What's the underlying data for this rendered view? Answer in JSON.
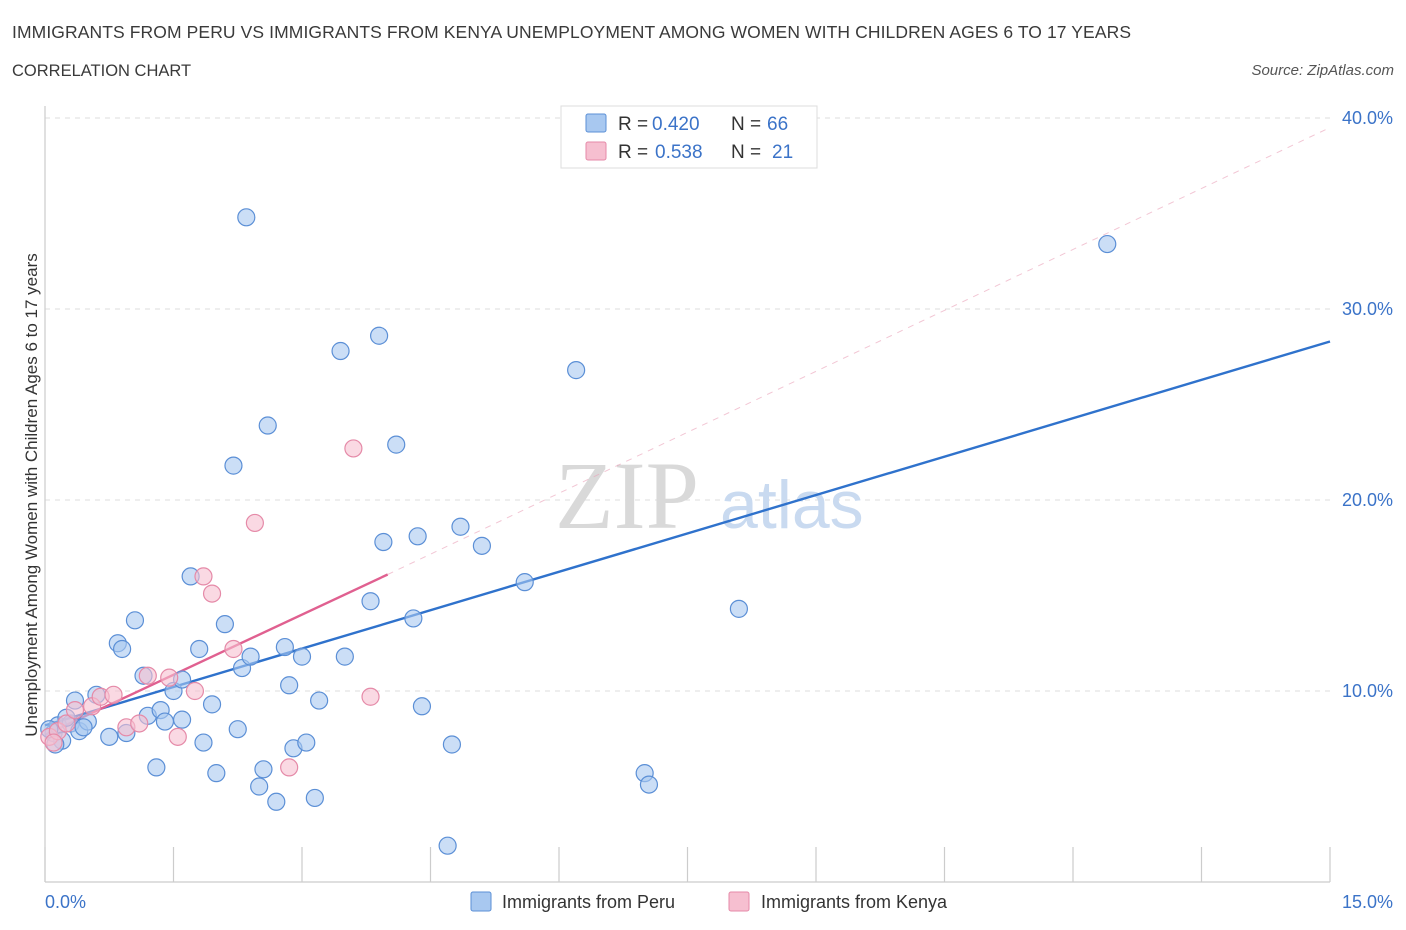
{
  "header": {
    "title": "IMMIGRANTS FROM PERU VS IMMIGRANTS FROM KENYA UNEMPLOYMENT AMONG WOMEN WITH CHILDREN AGES 6 TO 17 YEARS",
    "subtitle": "CORRELATION CHART",
    "source": "Source: ZipAtlas.com"
  },
  "watermark": {
    "zip": "ZIP",
    "atlas": "atlas"
  },
  "colors": {
    "peru_fill": "#a8c8f0",
    "peru_stroke": "#5b8fd6",
    "peru_line": "#2f72cc",
    "kenya_fill": "#f6bfd0",
    "kenya_stroke": "#e58aa8",
    "kenya_line": "#e06090",
    "axis_label": "#3b73c8",
    "grid": "#dddddd"
  },
  "legend": {
    "rows": [
      {
        "r_label": "R = ",
        "r_value": "0.420",
        "n_label": "N = ",
        "n_value": "66",
        "series": "peru"
      },
      {
        "r_label": "R = ",
        "r_value": "0.538",
        "n_label": "N = ",
        "n_value": "21",
        "series": "kenya"
      }
    ]
  },
  "bottom_legend": [
    "Immigrants from Peru",
    "Immigrants from Kenya"
  ],
  "chart_data": {
    "type": "scatter",
    "title": "IMMIGRANTS FROM PERU VS IMMIGRANTS FROM KENYA UNEMPLOYMENT AMONG WOMEN WITH CHILDREN AGES 6 TO 17 YEARS",
    "xlabel": "",
    "ylabel": "Unemployment Among Women with Children Ages 6 to 17 years",
    "xlim": [
      0,
      15
    ],
    "ylim": [
      0,
      40
    ],
    "x_tick_labels": [
      "0.0%",
      "15.0%"
    ],
    "y_ticks": [
      10,
      20,
      30,
      40
    ],
    "y_tick_labels": [
      "10.0%",
      "20.0%",
      "30.0%",
      "40.0%"
    ],
    "grid": true,
    "legend_position": "top-center",
    "series": [
      {
        "name": "Immigrants from Peru",
        "points": [
          [
            0.1,
            7.8
          ],
          [
            0.15,
            8.2
          ],
          [
            0.2,
            7.4
          ],
          [
            0.3,
            8.3
          ],
          [
            0.35,
            9.5
          ],
          [
            0.4,
            7.9
          ],
          [
            0.5,
            8.4
          ],
          [
            0.6,
            9.8
          ],
          [
            0.75,
            7.6
          ],
          [
            0.85,
            12.5
          ],
          [
            0.9,
            12.2
          ],
          [
            0.95,
            7.8
          ],
          [
            1.05,
            13.7
          ],
          [
            1.15,
            10.8
          ],
          [
            1.2,
            8.7
          ],
          [
            1.3,
            6.0
          ],
          [
            1.35,
            9.0
          ],
          [
            1.4,
            8.4
          ],
          [
            1.5,
            10.0
          ],
          [
            1.6,
            8.5
          ],
          [
            1.6,
            10.6
          ],
          [
            1.7,
            16.0
          ],
          [
            1.8,
            12.2
          ],
          [
            1.85,
            7.3
          ],
          [
            1.95,
            9.3
          ],
          [
            2.0,
            5.7
          ],
          [
            2.1,
            13.5
          ],
          [
            2.2,
            21.8
          ],
          [
            2.3,
            11.2
          ],
          [
            2.25,
            8.0
          ],
          [
            2.35,
            34.8
          ],
          [
            2.4,
            11.8
          ],
          [
            2.5,
            5.0
          ],
          [
            2.55,
            5.9
          ],
          [
            2.6,
            23.9
          ],
          [
            2.7,
            4.2
          ],
          [
            2.8,
            12.3
          ],
          [
            2.85,
            10.3
          ],
          [
            2.9,
            7.0
          ],
          [
            3.0,
            11.8
          ],
          [
            3.05,
            7.3
          ],
          [
            3.15,
            4.4
          ],
          [
            3.2,
            9.5
          ],
          [
            3.45,
            27.8
          ],
          [
            3.5,
            11.8
          ],
          [
            3.8,
            14.7
          ],
          [
            3.9,
            28.6
          ],
          [
            3.95,
            17.8
          ],
          [
            4.1,
            22.9
          ],
          [
            4.3,
            13.8
          ],
          [
            4.35,
            18.1
          ],
          [
            4.4,
            9.2
          ],
          [
            4.7,
            1.9
          ],
          [
            4.75,
            7.2
          ],
          [
            4.85,
            18.6
          ],
          [
            5.1,
            17.6
          ],
          [
            5.6,
            15.7
          ],
          [
            6.2,
            26.8
          ],
          [
            7.0,
            5.7
          ],
          [
            7.05,
            5.1
          ],
          [
            8.1,
            14.3
          ],
          [
            12.4,
            33.4
          ],
          [
            0.05,
            8.0
          ],
          [
            0.12,
            7.2
          ],
          [
            0.25,
            8.6
          ],
          [
            0.45,
            8.1
          ]
        ]
      },
      {
        "name": "Immigrants from Kenya",
        "points": [
          [
            0.05,
            7.6
          ],
          [
            0.15,
            7.9
          ],
          [
            0.25,
            8.3
          ],
          [
            0.35,
            9.0
          ],
          [
            0.55,
            9.2
          ],
          [
            0.65,
            9.7
          ],
          [
            0.8,
            9.8
          ],
          [
            0.95,
            8.1
          ],
          [
            1.1,
            8.3
          ],
          [
            1.2,
            10.8
          ],
          [
            1.45,
            10.7
          ],
          [
            1.55,
            7.6
          ],
          [
            1.75,
            10.0
          ],
          [
            1.85,
            16.0
          ],
          [
            1.95,
            15.1
          ],
          [
            2.2,
            12.2
          ],
          [
            2.45,
            18.8
          ],
          [
            2.85,
            6.0
          ],
          [
            3.6,
            22.7
          ],
          [
            3.8,
            9.7
          ],
          [
            0.1,
            7.3
          ]
        ]
      }
    ],
    "trendlines": [
      {
        "series": "Immigrants from Peru",
        "from": [
          0,
          8.2
        ],
        "to": [
          15,
          28.3
        ],
        "style": "solid"
      },
      {
        "series": "Immigrants from Kenya",
        "from": [
          0,
          7.7
        ],
        "to": [
          4.0,
          16.1
        ],
        "style": "solid"
      },
      {
        "series": "Immigrants from Kenya",
        "from": [
          4.0,
          16.1
        ],
        "to": [
          15,
          39.5
        ],
        "style": "dashed"
      }
    ]
  }
}
